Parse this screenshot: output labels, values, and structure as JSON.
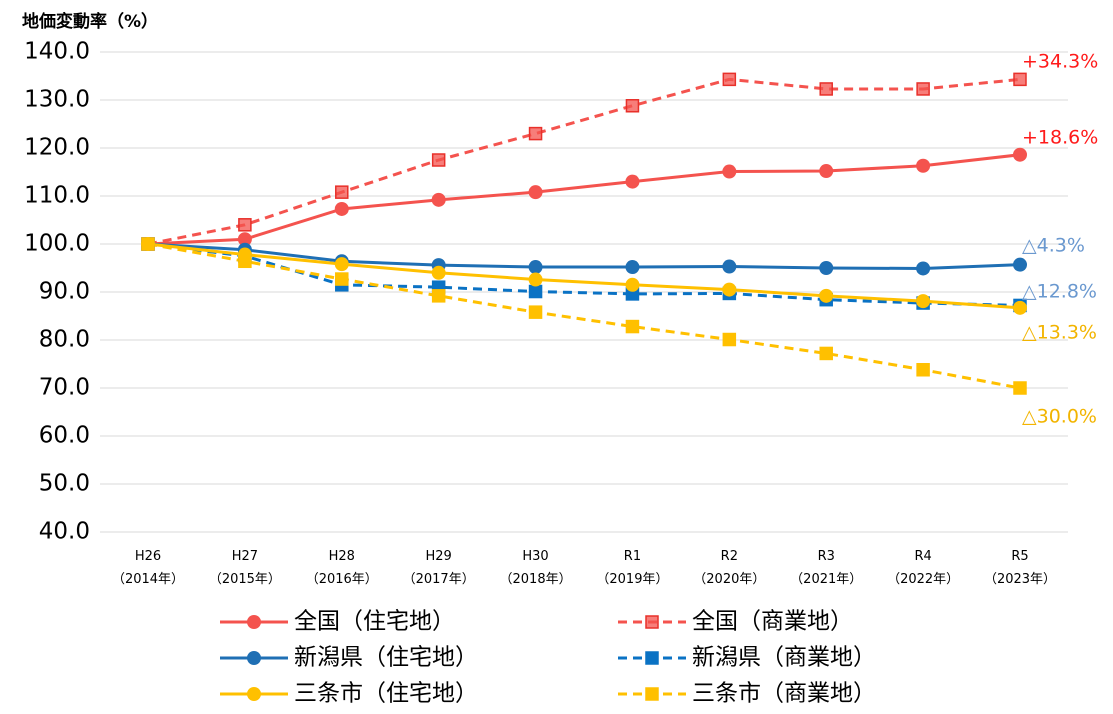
{
  "chart_data": {
    "type": "line",
    "y_label": "地価変動率（%）",
    "categories": [
      [
        "H26",
        "（2014年）"
      ],
      [
        "H27",
        "（2015年）"
      ],
      [
        "H28",
        "（2016年）"
      ],
      [
        "H29",
        "（2017年）"
      ],
      [
        "H30",
        "（2018年）"
      ],
      [
        "R1",
        "（2019年）"
      ],
      [
        "R2",
        "（2020年）"
      ],
      [
        "R3",
        "（2021年）"
      ],
      [
        "R4",
        "（2022年）"
      ],
      [
        "R5",
        "（2023年）"
      ]
    ],
    "ylim": [
      40,
      140
    ],
    "yticks": [
      {
        "value": 40,
        "label": "40.0"
      },
      {
        "value": 50,
        "label": "50.0"
      },
      {
        "value": 60,
        "label": "60.0"
      },
      {
        "value": 70,
        "label": "70.0"
      },
      {
        "value": 80,
        "label": "80.0"
      },
      {
        "value": 90,
        "label": "90.0"
      },
      {
        "value": 100,
        "label": "100.0"
      },
      {
        "value": 110,
        "label": "110.0"
      },
      {
        "value": 120,
        "label": "120.0"
      },
      {
        "value": 130,
        "label": "130.0"
      },
      {
        "value": 140,
        "label": "140.0"
      }
    ],
    "grid": true,
    "series": [
      {
        "name": "全国（住宅地）",
        "color": "#f4534e",
        "dashed": false,
        "marker": "circle",
        "values": [
          100,
          101.0,
          107.3,
          109.2,
          110.8,
          113.0,
          115.1,
          115.2,
          116.3,
          118.6
        ]
      },
      {
        "name": "全国（商業地）",
        "color": "#f4534e",
        "dashed": true,
        "marker": "square",
        "values": [
          100,
          104.0,
          110.8,
          117.5,
          123.0,
          128.8,
          134.3,
          132.3,
          132.3,
          134.3
        ]
      },
      {
        "name": "新潟県（住宅地）",
        "color": "#1f6fb4",
        "dashed": false,
        "marker": "circle",
        "values": [
          100,
          98.8,
          96.4,
          95.6,
          95.2,
          95.2,
          95.3,
          95.0,
          94.9,
          95.7
        ]
      },
      {
        "name": "新潟県（商業地）",
        "color": "#0a72c4",
        "dashed": true,
        "marker": "square",
        "values": [
          100,
          97.5,
          91.5,
          91.0,
          90.1,
          89.6,
          89.7,
          88.4,
          87.7,
          87.2
        ]
      },
      {
        "name": "三条市（住宅地）",
        "color": "#ffc000",
        "dashed": false,
        "marker": "circle",
        "values": [
          100,
          97.8,
          95.8,
          94.0,
          92.6,
          91.5,
          90.5,
          89.2,
          88.1,
          86.7
        ]
      },
      {
        "name": "三条市（商業地）",
        "color": "#ffc000",
        "dashed": true,
        "marker": "square",
        "values": [
          100,
          96.4,
          92.7,
          89.2,
          85.8,
          82.8,
          80.1,
          77.2,
          73.8,
          70.0
        ]
      }
    ],
    "annotations": [
      {
        "text": "+34.3%",
        "color": "#ff1a1a"
      },
      {
        "text": "+18.6%",
        "color": "#ff1a1a"
      },
      {
        "text": "△4.3%",
        "color": "#6a98cf"
      },
      {
        "text": "△12.8%",
        "color": "#6a98cf"
      },
      {
        "text": "△13.3%",
        "color": "#f2b400"
      },
      {
        "text": "△30.0%",
        "color": "#f2b400"
      }
    ]
  }
}
